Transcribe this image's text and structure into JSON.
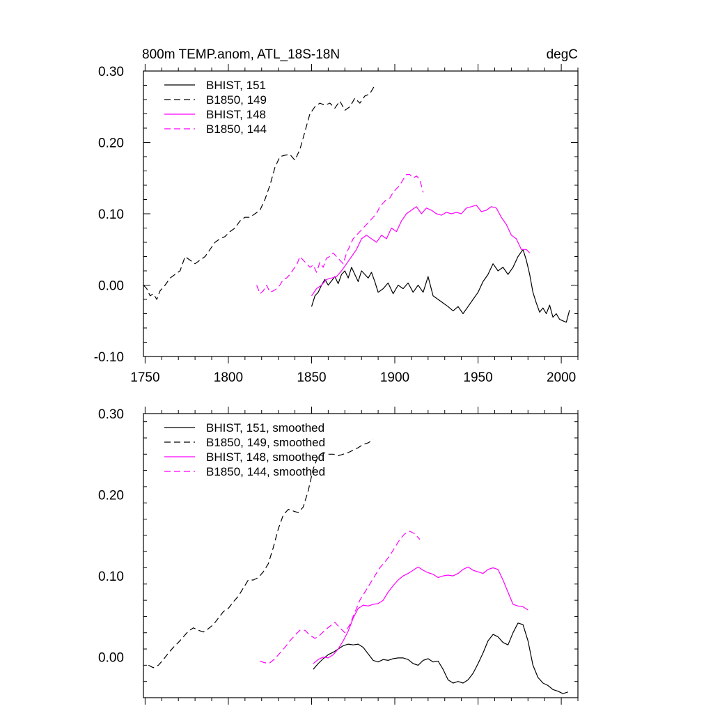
{
  "colors": {
    "black": "#000000",
    "magenta": "#ff00ff"
  },
  "chart_data": [
    {
      "type": "line",
      "title": "800m TEMP.anom, ATL_18S-18N",
      "units": "degC",
      "xlim": [
        1749,
        2010
      ],
      "ylim": [
        -0.1,
        0.3
      ],
      "xticks": [
        1750,
        1800,
        1850,
        1900,
        1950,
        2000
      ],
      "xtick_labels": [
        "1750",
        "1800",
        "1850",
        "1900",
        "1950",
        "2000"
      ],
      "yticks": [
        -0.1,
        0.0,
        0.1,
        0.2,
        0.3
      ],
      "ytick_labels": [
        "-0.10",
        "0.00",
        "0.10",
        "0.20",
        "0.30"
      ],
      "legend_position": "top-left",
      "series": [
        {
          "name": "BHIST, 151",
          "color": "#000000",
          "dash": "solid",
          "x": [
            1850,
            1852,
            1854,
            1856,
            1858,
            1860,
            1862,
            1864,
            1866,
            1868,
            1870,
            1872,
            1874,
            1876,
            1878,
            1880,
            1882,
            1884,
            1886,
            1888,
            1890,
            1893,
            1896,
            1899,
            1902,
            1905,
            1908,
            1911,
            1914,
            1917,
            1920,
            1923,
            1926,
            1929,
            1932,
            1935,
            1938,
            1941,
            1944,
            1947,
            1950,
            1953,
            1956,
            1959,
            1962,
            1965,
            1968,
            1971,
            1974,
            1977,
            1979,
            1981,
            1983,
            1985,
            1987,
            1989,
            1991,
            1993,
            1995,
            1997,
            1999,
            2001,
            2003,
            2005
          ],
          "y": [
            -0.03,
            -0.015,
            -0.01,
            0.0,
            0.008,
            0.0,
            0.006,
            0.012,
            0.002,
            0.015,
            0.02,
            0.01,
            0.025,
            0.015,
            0.005,
            0.02,
            0.015,
            0.01,
            0.018,
            0.005,
            -0.01,
            -0.005,
            0.003,
            -0.012,
            0.0,
            -0.005,
            0.003,
            -0.01,
            0.0,
            -0.01,
            0.012,
            -0.015,
            -0.02,
            -0.025,
            -0.03,
            -0.036,
            -0.03,
            -0.04,
            -0.03,
            -0.02,
            -0.01,
            0.005,
            0.015,
            0.03,
            0.02,
            0.025,
            0.015,
            0.025,
            0.04,
            0.05,
            0.035,
            0.015,
            -0.01,
            -0.025,
            -0.038,
            -0.032,
            -0.04,
            -0.028,
            -0.045,
            -0.04,
            -0.048,
            -0.05,
            -0.052,
            -0.035
          ]
        },
        {
          "name": "B1850, 149",
          "color": "#000000",
          "dash": "dashed",
          "x": [
            1749,
            1751,
            1753,
            1755,
            1757,
            1759,
            1762,
            1765,
            1768,
            1771,
            1774,
            1777,
            1780,
            1783,
            1786,
            1789,
            1792,
            1795,
            1798,
            1801,
            1804,
            1807,
            1810,
            1813,
            1816,
            1819,
            1822,
            1825,
            1828,
            1831,
            1834,
            1837,
            1840,
            1843,
            1846,
            1849,
            1852,
            1855,
            1858,
            1861,
            1864,
            1867,
            1870,
            1873,
            1876,
            1879,
            1882,
            1885,
            1888
          ],
          "y": [
            0.0,
            -0.005,
            -0.015,
            -0.012,
            -0.02,
            -0.008,
            0.0,
            0.01,
            0.015,
            0.02,
            0.04,
            0.035,
            0.03,
            0.035,
            0.04,
            0.05,
            0.06,
            0.065,
            0.068,
            0.075,
            0.08,
            0.09,
            0.095,
            0.095,
            0.1,
            0.105,
            0.12,
            0.14,
            0.165,
            0.18,
            0.182,
            0.183,
            0.175,
            0.19,
            0.215,
            0.24,
            0.25,
            0.255,
            0.252,
            0.255,
            0.248,
            0.258,
            0.245,
            0.25,
            0.262,
            0.255,
            0.265,
            0.268,
            0.28
          ]
        },
        {
          "name": "BHIST, 148",
          "color": "#ff00ff",
          "dash": "solid",
          "x": [
            1850,
            1853,
            1856,
            1859,
            1862,
            1865,
            1868,
            1871,
            1874,
            1877,
            1880,
            1883,
            1886,
            1889,
            1892,
            1895,
            1898,
            1901,
            1904,
            1907,
            1910,
            1913,
            1916,
            1919,
            1922,
            1925,
            1928,
            1931,
            1934,
            1937,
            1940,
            1943,
            1946,
            1949,
            1952,
            1955,
            1958,
            1961,
            1964,
            1967,
            1970,
            1973,
            1976,
            1979,
            1981
          ],
          "y": [
            -0.015,
            -0.005,
            0.0,
            0.008,
            0.01,
            0.012,
            0.02,
            0.03,
            0.04,
            0.05,
            0.065,
            0.07,
            0.065,
            0.06,
            0.07,
            0.065,
            0.08,
            0.075,
            0.09,
            0.1,
            0.105,
            0.11,
            0.1,
            0.108,
            0.105,
            0.1,
            0.098,
            0.102,
            0.1,
            0.102,
            0.1,
            0.108,
            0.11,
            0.112,
            0.103,
            0.105,
            0.11,
            0.108,
            0.095,
            0.085,
            0.07,
            0.065,
            0.05,
            0.05,
            0.045
          ]
        },
        {
          "name": "B1850, 144",
          "color": "#ff00ff",
          "dash": "dashed",
          "x": [
            1817,
            1819,
            1821,
            1823,
            1825,
            1827,
            1829,
            1831,
            1833,
            1835,
            1837,
            1839,
            1841,
            1843,
            1845,
            1847,
            1849,
            1851,
            1853,
            1855,
            1857,
            1859,
            1861,
            1863,
            1865,
            1867,
            1869,
            1871,
            1873,
            1875,
            1877,
            1879,
            1881,
            1883,
            1885,
            1887,
            1889,
            1891,
            1893,
            1895,
            1897,
            1899,
            1901,
            1903,
            1905,
            1907,
            1909,
            1911,
            1913,
            1915,
            1917
          ],
          "y": [
            0.0,
            -0.012,
            -0.008,
            0.0,
            -0.01,
            -0.008,
            -0.005,
            0.0,
            0.008,
            0.01,
            0.015,
            0.022,
            0.028,
            0.04,
            0.035,
            0.03,
            0.025,
            0.028,
            0.018,
            0.032,
            0.025,
            0.038,
            0.04,
            0.045,
            0.04,
            0.035,
            0.03,
            0.045,
            0.055,
            0.065,
            0.07,
            0.075,
            0.08,
            0.085,
            0.09,
            0.095,
            0.1,
            0.11,
            0.115,
            0.12,
            0.122,
            0.13,
            0.135,
            0.14,
            0.148,
            0.155,
            0.155,
            0.15,
            0.153,
            0.148,
            0.13
          ]
        }
      ]
    },
    {
      "type": "line",
      "xlim": [
        1749,
        2010
      ],
      "ylim": [
        -0.05,
        0.3
      ],
      "xticks": [
        1750,
        1800,
        1850,
        1900,
        1950,
        2000
      ],
      "yticks": [
        0.0,
        0.1,
        0.2,
        0.3
      ],
      "ytick_labels": [
        "0.00",
        "0.10",
        "0.20",
        "0.30"
      ],
      "legend_position": "top-left",
      "series": [
        {
          "name": "BHIST, 151, smoothed",
          "color": "#000000",
          "dash": "solid",
          "x": [
            1851,
            1854,
            1857,
            1860,
            1863,
            1866,
            1869,
            1872,
            1875,
            1878,
            1881,
            1884,
            1887,
            1890,
            1893,
            1896,
            1899,
            1902,
            1905,
            1908,
            1911,
            1914,
            1917,
            1920,
            1923,
            1926,
            1929,
            1932,
            1935,
            1938,
            1941,
            1944,
            1947,
            1950,
            1953,
            1956,
            1959,
            1962,
            1965,
            1968,
            1971,
            1974,
            1977,
            1980,
            1983,
            1986,
            1989,
            1992,
            1995,
            1998,
            2001,
            2004
          ],
          "y": [
            -0.015,
            -0.008,
            -0.002,
            0.003,
            0.006,
            0.01,
            0.014,
            0.016,
            0.015,
            0.016,
            0.012,
            0.004,
            -0.004,
            -0.006,
            -0.003,
            -0.004,
            -0.002,
            -0.001,
            -0.001,
            -0.003,
            -0.008,
            -0.01,
            -0.004,
            -0.002,
            -0.006,
            -0.005,
            -0.015,
            -0.028,
            -0.032,
            -0.03,
            -0.032,
            -0.028,
            -0.02,
            -0.008,
            0.005,
            0.02,
            0.028,
            0.025,
            0.018,
            0.015,
            0.03,
            0.042,
            0.04,
            0.02,
            -0.01,
            -0.025,
            -0.032,
            -0.035,
            -0.04,
            -0.042,
            -0.045,
            -0.043
          ]
        },
        {
          "name": "B1850, 149, smoothed",
          "color": "#000000",
          "dash": "dashed",
          "x": [
            1752,
            1755,
            1758,
            1761,
            1764,
            1767,
            1770,
            1773,
            1776,
            1779,
            1782,
            1785,
            1788,
            1791,
            1794,
            1797,
            1800,
            1803,
            1806,
            1809,
            1812,
            1815,
            1818,
            1821,
            1824,
            1827,
            1830,
            1833,
            1836,
            1839,
            1842,
            1845,
            1848,
            1851,
            1854,
            1857,
            1860,
            1863,
            1866,
            1869,
            1872,
            1875,
            1878,
            1881,
            1884,
            1887
          ],
          "y": [
            -0.01,
            -0.013,
            -0.01,
            -0.003,
            0.005,
            0.012,
            0.018,
            0.025,
            0.032,
            0.036,
            0.033,
            0.031,
            0.035,
            0.04,
            0.048,
            0.056,
            0.06,
            0.068,
            0.075,
            0.085,
            0.095,
            0.095,
            0.098,
            0.105,
            0.115,
            0.135,
            0.158,
            0.175,
            0.182,
            0.18,
            0.178,
            0.185,
            0.205,
            0.232,
            0.248,
            0.252,
            0.25,
            0.25,
            0.248,
            0.25,
            0.252,
            0.255,
            0.258,
            0.262,
            0.264,
            0.268
          ]
        },
        {
          "name": "BHIST, 148, smoothed",
          "color": "#ff00ff",
          "dash": "solid",
          "x": [
            1851,
            1854,
            1857,
            1860,
            1863,
            1866,
            1869,
            1872,
            1875,
            1878,
            1881,
            1884,
            1887,
            1890,
            1893,
            1896,
            1899,
            1902,
            1905,
            1908,
            1911,
            1914,
            1917,
            1920,
            1923,
            1926,
            1929,
            1932,
            1935,
            1938,
            1941,
            1944,
            1947,
            1950,
            1953,
            1956,
            1959,
            1962,
            1965,
            1968,
            1971,
            1974,
            1977,
            1980
          ],
          "y": [
            -0.008,
            -0.003,
            0.0,
            -0.001,
            0.003,
            0.01,
            0.02,
            0.032,
            0.048,
            0.06,
            0.064,
            0.063,
            0.065,
            0.066,
            0.07,
            0.08,
            0.088,
            0.095,
            0.1,
            0.103,
            0.107,
            0.111,
            0.107,
            0.104,
            0.102,
            0.098,
            0.1,
            0.101,
            0.1,
            0.103,
            0.108,
            0.111,
            0.107,
            0.105,
            0.103,
            0.108,
            0.11,
            0.108,
            0.095,
            0.08,
            0.065,
            0.063,
            0.062,
            0.058
          ]
        },
        {
          "name": "B1850, 144, smoothed",
          "color": "#ff00ff",
          "dash": "dashed",
          "x": [
            1819,
            1822,
            1825,
            1828,
            1831,
            1834,
            1837,
            1840,
            1843,
            1846,
            1849,
            1852,
            1855,
            1858,
            1861,
            1864,
            1867,
            1870,
            1873,
            1876,
            1879,
            1882,
            1885,
            1888,
            1891,
            1894,
            1897,
            1900,
            1903,
            1906,
            1909,
            1912,
            1915
          ],
          "y": [
            -0.005,
            -0.007,
            -0.007,
            -0.002,
            0.005,
            0.012,
            0.02,
            0.027,
            0.033,
            0.033,
            0.027,
            0.023,
            0.027,
            0.033,
            0.038,
            0.043,
            0.036,
            0.03,
            0.04,
            0.055,
            0.07,
            0.08,
            0.09,
            0.1,
            0.11,
            0.117,
            0.125,
            0.135,
            0.145,
            0.152,
            0.155,
            0.152,
            0.145
          ]
        }
      ]
    }
  ]
}
